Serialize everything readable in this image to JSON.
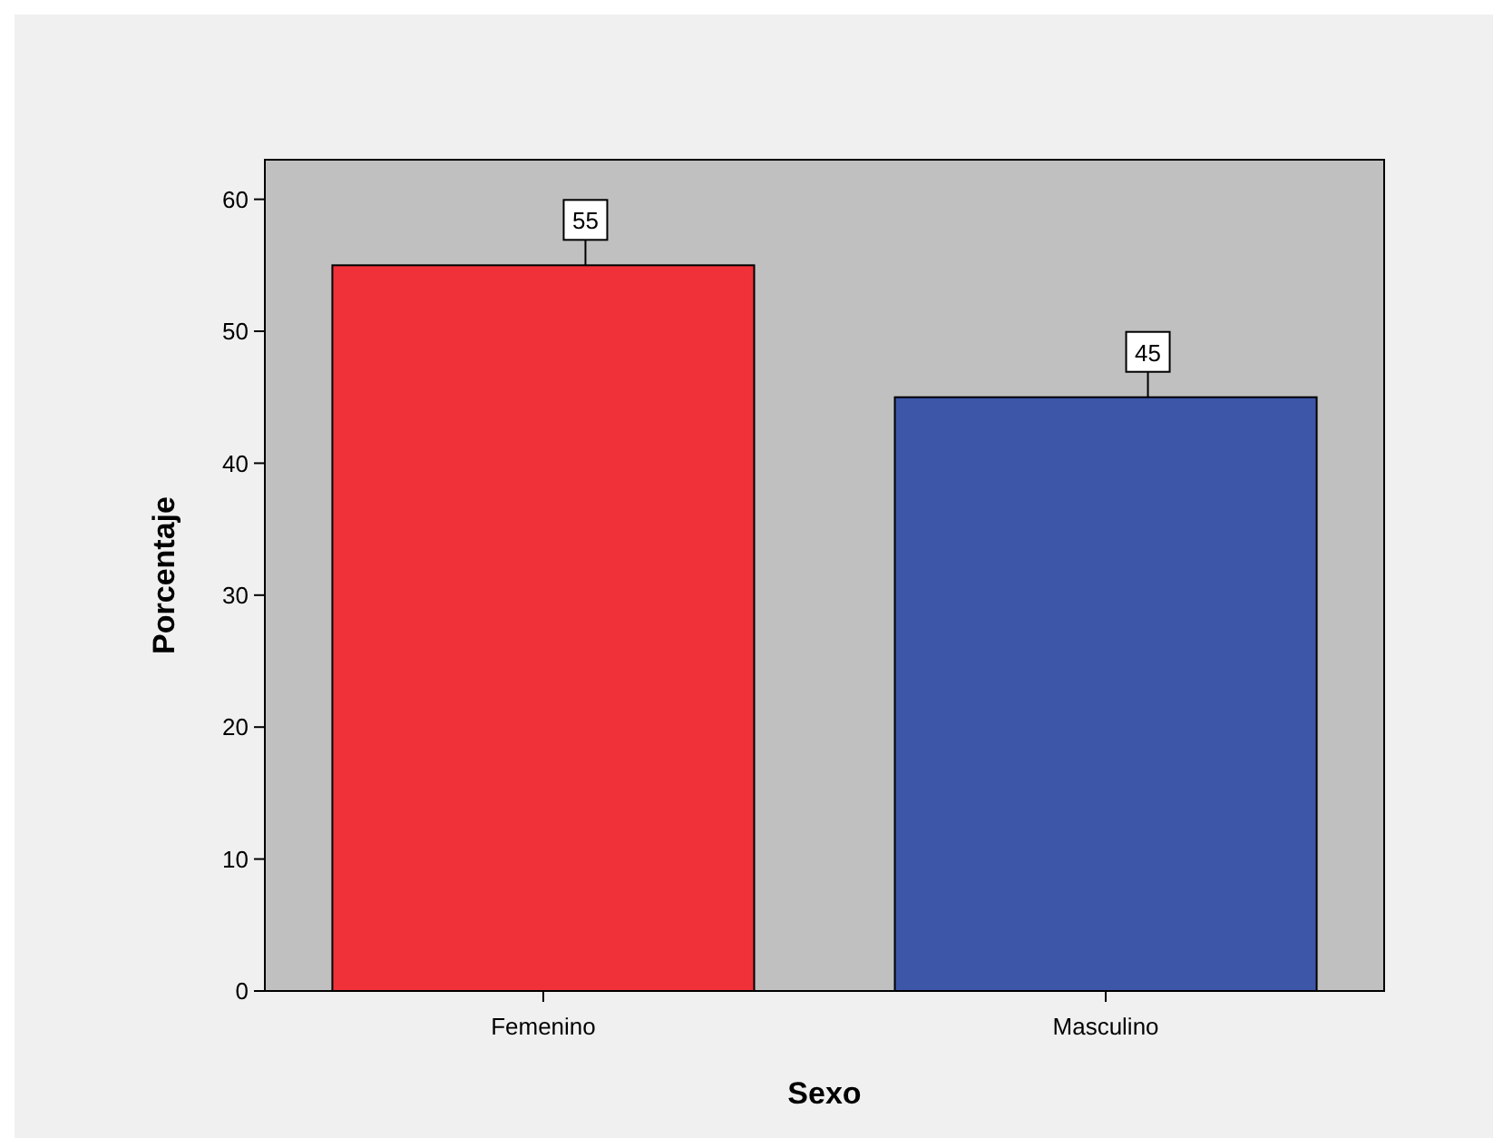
{
  "chart_data": {
    "type": "bar",
    "xlabel": "Sexo",
    "ylabel": "Porcentaje",
    "categories": [
      "Femenino",
      "Masculino"
    ],
    "values": [
      55,
      45
    ],
    "colors": [
      "#f0313a",
      "#3d56a8"
    ],
    "ylim": [
      0,
      63
    ],
    "yticks": [
      0,
      10,
      20,
      30,
      40,
      50,
      60
    ],
    "data_labels": true
  }
}
